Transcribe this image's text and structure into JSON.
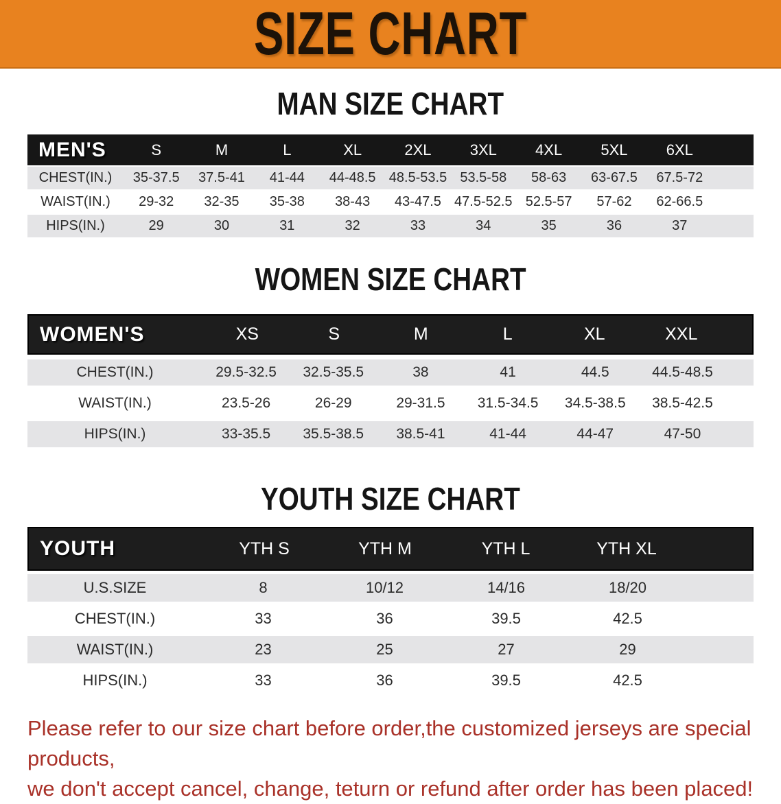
{
  "banner": {
    "title": "SIZE CHART",
    "bg_color": "#e8821f",
    "text_color": "#1c1208"
  },
  "colors": {
    "table_header_bg": "#161616",
    "table_header_text": "#ffffff",
    "row_stripe": "#e4e4e6",
    "disclaimer_text": "#a93128"
  },
  "sections": [
    {
      "title": "MAN SIZE CHART",
      "header_label": "MEN'S",
      "columns": [
        "S",
        "M",
        "L",
        "XL",
        "2XL",
        "3XL",
        "4XL",
        "5XL",
        "6XL"
      ],
      "rows": [
        {
          "label": "CHEST(IN.)",
          "values": [
            "35-37.5",
            "37.5-41",
            "41-44",
            "44-48.5",
            "48.5-53.5",
            "53.5-58",
            "58-63",
            "63-67.5",
            "67.5-72"
          ]
        },
        {
          "label": "WAIST(IN.)",
          "values": [
            "29-32",
            "32-35",
            "35-38",
            "38-43",
            "43-47.5",
            "47.5-52.5",
            "52.5-57",
            "57-62",
            "62-66.5"
          ]
        },
        {
          "label": "HIPS(IN.)",
          "values": [
            "29",
            "30",
            "31",
            "32",
            "33",
            "34",
            "35",
            "36",
            "37"
          ]
        }
      ]
    },
    {
      "title": "WOMEN SIZE CHART",
      "header_label": "WOMEN'S",
      "columns": [
        "XS",
        "S",
        "M",
        "L",
        "XL",
        "XXL"
      ],
      "rows": [
        {
          "label": "CHEST(IN.)",
          "values": [
            "29.5-32.5",
            "32.5-35.5",
            "38",
            "41",
            "44.5",
            "44.5-48.5"
          ]
        },
        {
          "label": "WAIST(IN.)",
          "values": [
            "23.5-26",
            "26-29",
            "29-31.5",
            "31.5-34.5",
            "34.5-38.5",
            "38.5-42.5"
          ]
        },
        {
          "label": "HIPS(IN.)",
          "values": [
            "33-35.5",
            "35.5-38.5",
            "38.5-41",
            "41-44",
            "44-47",
            "47-50"
          ]
        }
      ]
    },
    {
      "title": "YOUTH SIZE CHART",
      "header_label": "YOUTH",
      "columns": [
        "YTH S",
        "YTH M",
        "YTH L",
        "YTH XL"
      ],
      "rows": [
        {
          "label": "U.S.SIZE",
          "values": [
            "8",
            "10/12",
            "14/16",
            "18/20"
          ]
        },
        {
          "label": "CHEST(IN.)",
          "values": [
            "33",
            "36",
            "39.5",
            "42.5"
          ]
        },
        {
          "label": "WAIST(IN.)",
          "values": [
            "23",
            "25",
            "27",
            "29"
          ]
        },
        {
          "label": "HIPS(IN.)",
          "values": [
            "33",
            "36",
            "39.5",
            "42.5"
          ]
        }
      ]
    }
  ],
  "disclaimer": {
    "line1": "Please refer to our size chart before order,the customized jerseys are special products,",
    "line2": "we don't accept cancel, change, teturn or refund after order has been placed!"
  }
}
